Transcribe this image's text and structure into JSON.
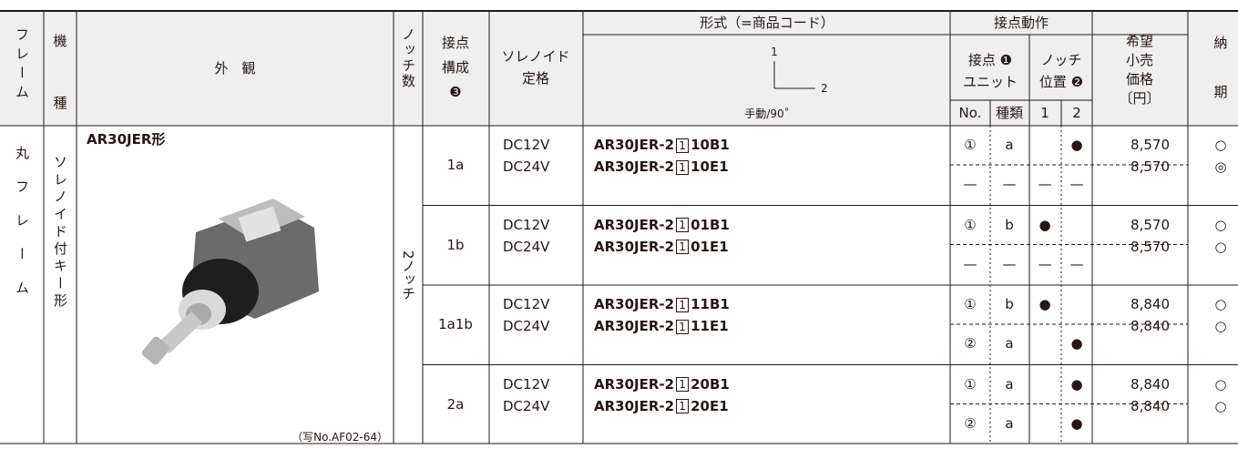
{
  "header": {
    "frame": "フレーム",
    "model": [
      "機",
      "種"
    ],
    "appearance": "外　観",
    "notches": "ノッチ数",
    "contact_config": [
      "接点",
      "構成",
      "❸"
    ],
    "solenoid": [
      "ソレノイド",
      "定格"
    ],
    "type_title": "形式（=商品コード）",
    "type_diagram": {
      "label1": "1",
      "label2": "2",
      "note": "手動/90˚"
    },
    "contact_action": "接点動作",
    "contact_unit": [
      "接点 ❶",
      "ユニット"
    ],
    "notch_position": [
      "ノッチ",
      "位置 ❷"
    ],
    "no": "No.",
    "kind": "種類",
    "pos1": "1",
    "pos2": "2",
    "price": [
      "希望",
      "小売",
      "価格",
      "〔円〕"
    ],
    "delivery": [
      "納",
      "期"
    ]
  },
  "body": {
    "frame": "丸フレーム",
    "model": "ソレノイド付キー形",
    "product_name": "AR30JER形",
    "photo_caption": "（写No.AF02-64）",
    "notches": "2ノッチ",
    "groups": [
      {
        "config": "1a",
        "rows": [
          {
            "rating": "DC12V",
            "code": {
              "prefix": "AR30JER-2",
              "box": "1",
              "suffix": "10B1"
            },
            "no": "①",
            "kind": "a",
            "pos1": null,
            "pos2": "●",
            "price": "8,570",
            "delivery": "○"
          },
          {
            "rating": "DC24V",
            "code": {
              "prefix": "AR30JER-2",
              "box": "1",
              "suffix": "10E1"
            },
            "no": "—",
            "kind": "—",
            "pos1": "—",
            "pos2": "—",
            "price": "8,570",
            "delivery": "◎"
          }
        ]
      },
      {
        "config": "1b",
        "rows": [
          {
            "rating": "DC12V",
            "code": {
              "prefix": "AR30JER-2",
              "box": "1",
              "suffix": "01B1"
            },
            "no": "①",
            "kind": "b",
            "pos1": "●",
            "pos2": null,
            "price": "8,570",
            "delivery": "○"
          },
          {
            "rating": "DC24V",
            "code": {
              "prefix": "AR30JER-2",
              "box": "1",
              "suffix": "01E1"
            },
            "no": "—",
            "kind": "—",
            "pos1": "—",
            "pos2": "—",
            "price": "8,570",
            "delivery": "○"
          }
        ]
      },
      {
        "config": "1a1b",
        "rows": [
          {
            "rating": "DC12V",
            "code": {
              "prefix": "AR30JER-2",
              "box": "1",
              "suffix": "11B1"
            },
            "no": "①",
            "kind": "b",
            "pos1": "●",
            "pos2": null,
            "price": "8,840",
            "delivery": "○"
          },
          {
            "rating": "DC24V",
            "code": {
              "prefix": "AR30JER-2",
              "box": "1",
              "suffix": "11E1"
            },
            "no": "②",
            "kind": "a",
            "pos1": null,
            "pos2": "●",
            "price": "8,840",
            "delivery": "○"
          }
        ]
      },
      {
        "config": "2a",
        "rows": [
          {
            "rating": "DC12V",
            "code": {
              "prefix": "AR30JER-2",
              "box": "1",
              "suffix": "20B1"
            },
            "no": "①",
            "kind": "a",
            "pos1": null,
            "pos2": "●",
            "price": "8,840",
            "delivery": "○"
          },
          {
            "rating": "DC24V",
            "code": {
              "prefix": "AR30JER-2",
              "box": "1",
              "suffix": "20E1"
            },
            "no": "②",
            "kind": "a",
            "pos1": null,
            "pos2": "●",
            "price": "8,840",
            "delivery": "○"
          }
        ]
      }
    ]
  }
}
